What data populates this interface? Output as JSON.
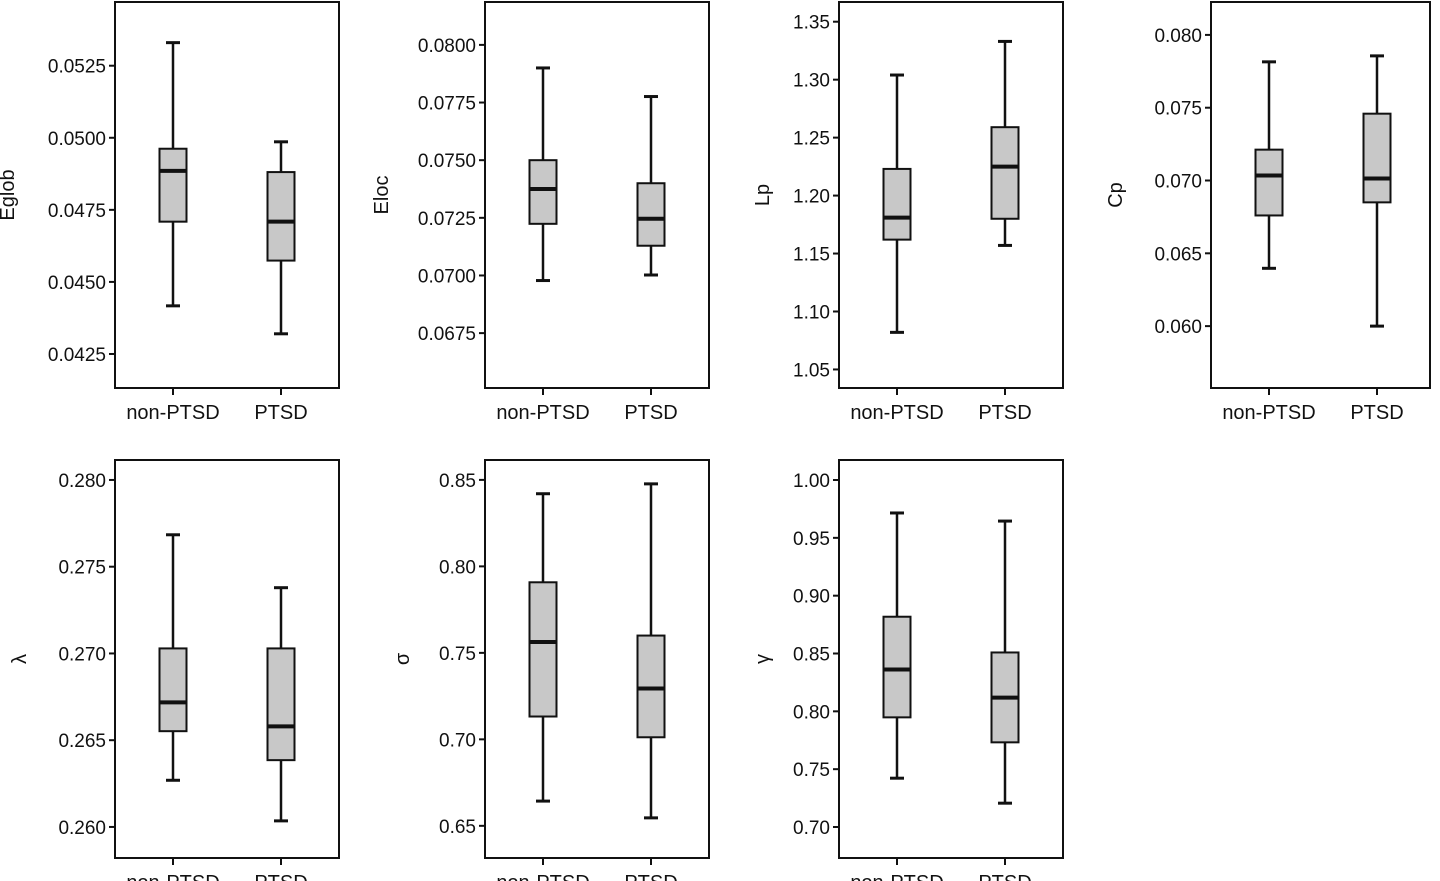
{
  "chart_data": [
    {
      "type": "box",
      "ylabel": "Eglob",
      "categories": [
        "non-PTSD",
        "PTSD"
      ],
      "ylim": [
        0.04132,
        0.05471
      ],
      "yticks": [
        "0.0425",
        "0.0450",
        "0.0475",
        "0.0500",
        "0.0525"
      ],
      "series": [
        {
          "category": "non-PTSD",
          "min": 0.04417,
          "q1": 0.04709,
          "median": 0.04885,
          "q3": 0.04962,
          "max": 0.0533
        },
        {
          "category": "PTSD",
          "min": 0.0432,
          "q1": 0.04574,
          "median": 0.04709,
          "q3": 0.04881,
          "max": 0.04986
        }
      ]
    },
    {
      "type": "box",
      "ylabel": "Eloc",
      "categories": [
        "non-PTSD",
        "PTSD"
      ],
      "ylim": [
        0.06512,
        0.08186
      ],
      "yticks": [
        "0.0675",
        "0.0700",
        "0.0725",
        "0.0750",
        "0.0775",
        "0.0800"
      ],
      "series": [
        {
          "category": "non-PTSD",
          "min": 0.06978,
          "q1": 0.07224,
          "median": 0.07375,
          "q3": 0.075,
          "max": 0.079
        },
        {
          "category": "PTSD",
          "min": 0.07002,
          "q1": 0.07129,
          "median": 0.07246,
          "q3": 0.074,
          "max": 0.07776
        }
      ]
    },
    {
      "type": "box",
      "ylabel": "Lp",
      "categories": [
        "non-PTSD",
        "PTSD"
      ],
      "ylim": [
        1.034,
        1.367
      ],
      "yticks": [
        "1.05",
        "1.10",
        "1.15",
        "1.20",
        "1.25",
        "1.30",
        "1.35"
      ],
      "series": [
        {
          "category": "non-PTSD",
          "min": 1.082,
          "q1": 1.162,
          "median": 1.181,
          "q3": 1.223,
          "max": 1.304
        },
        {
          "category": "PTSD",
          "min": 1.157,
          "q1": 1.18,
          "median": 1.225,
          "q3": 1.259,
          "max": 1.333
        }
      ]
    },
    {
      "type": "box",
      "ylabel": "Cp",
      "categories": [
        "non-PTSD",
        "PTSD"
      ],
      "ylim": [
        0.05575,
        0.08226
      ],
      "yticks": [
        "0.060",
        "0.065",
        "0.070",
        "0.075",
        "0.080"
      ],
      "series": [
        {
          "category": "non-PTSD",
          "min": 0.06397,
          "q1": 0.0676,
          "median": 0.07034,
          "q3": 0.07212,
          "max": 0.07815
        },
        {
          "category": "PTSD",
          "min": 0.06,
          "q1": 0.0685,
          "median": 0.07014,
          "q3": 0.07459,
          "max": 0.07856
        }
      ]
    },
    {
      "type": "box",
      "ylabel": "λ",
      "categories": [
        "non-PTSD",
        "PTSD"
      ],
      "ylim": [
        0.25821,
        0.28115
      ],
      "yticks": [
        "0.260",
        "0.265",
        "0.270",
        "0.275",
        "0.280"
      ],
      "series": [
        {
          "category": "non-PTSD",
          "min": 0.26269,
          "q1": 0.26552,
          "median": 0.26718,
          "q3": 0.27029,
          "max": 0.27684
        },
        {
          "category": "PTSD",
          "min": 0.26035,
          "q1": 0.26385,
          "median": 0.2658,
          "q3": 0.27029,
          "max": 0.27379
        }
      ]
    },
    {
      "type": "box",
      "ylabel": "σ",
      "categories": [
        "non-PTSD",
        "PTSD"
      ],
      "ylim": [
        0.6314,
        0.8615
      ],
      "yticks": [
        "0.65",
        "0.70",
        "0.75",
        "0.80",
        "0.85"
      ],
      "series": [
        {
          "category": "non-PTSD",
          "min": 0.6643,
          "q1": 0.7132,
          "median": 0.7563,
          "q3": 0.7908,
          "max": 0.842
        },
        {
          "category": "PTSD",
          "min": 0.6546,
          "q1": 0.7012,
          "median": 0.7294,
          "q3": 0.76,
          "max": 0.8477
        }
      ]
    },
    {
      "type": "box",
      "ylabel": "γ",
      "categories": [
        "non-PTSD",
        "PTSD"
      ],
      "ylim": [
        0.6732,
        1.0173
      ],
      "yticks": [
        "0.70",
        "0.75",
        "0.80",
        "0.85",
        "0.90",
        "0.95",
        "1.00"
      ],
      "series": [
        {
          "category": "non-PTSD",
          "min": 0.7422,
          "q1": 0.7948,
          "median": 0.8362,
          "q3": 0.8818,
          "max": 0.9715
        },
        {
          "category": "PTSD",
          "min": 0.7206,
          "q1": 0.7732,
          "median": 0.8119,
          "q3": 0.8509,
          "max": 0.9645
        }
      ]
    }
  ],
  "colors": {
    "box_fill": "#c8c8c8",
    "line": "#111111"
  }
}
